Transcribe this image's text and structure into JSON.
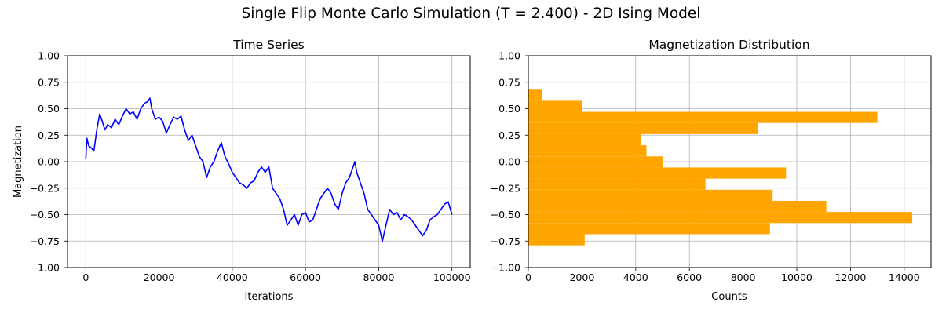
{
  "suptitle": "Single Flip Monte Carlo Simulation (T = 2.400) - 2D Ising Model",
  "colors": {
    "line": "#0000ff",
    "bars": "#ffa500",
    "grid": "#b0b0b0"
  },
  "chart_data": [
    {
      "type": "line",
      "title": "Time Series",
      "xlabel": "Iterations",
      "ylabel": "Magnetization",
      "xlim": [
        -5000,
        105000
      ],
      "ylim": [
        -1.0,
        1.0
      ],
      "xticks": [
        0,
        20000,
        40000,
        60000,
        80000,
        100000
      ],
      "xtick_labels": [
        "0",
        "20000",
        "40000",
        "60000",
        "80000",
        "100000"
      ],
      "yticks": [
        -1.0,
        -0.75,
        -0.5,
        -0.25,
        0.0,
        0.25,
        0.5,
        0.75,
        1.0
      ],
      "ytick_labels": [
        "−1.00",
        "−0.75",
        "−0.50",
        "−0.25",
        "0.00",
        "0.25",
        "0.50",
        "0.75",
        "1.00"
      ],
      "grid": true,
      "series": [
        {
          "color": "#0000ff",
          "x": [
            0,
            300,
            800,
            1500,
            2200,
            3000,
            3800,
            4500,
            5200,
            6000,
            7000,
            8000,
            9000,
            10000,
            11000,
            12000,
            13000,
            14000,
            15000,
            16000,
            17000,
            17500,
            18000,
            19000,
            20000,
            21000,
            22000,
            23000,
            24000,
            25000,
            26000,
            27000,
            28000,
            29000,
            30000,
            31000,
            32000,
            33000,
            34000,
            35000,
            36000,
            37000,
            38000,
            39000,
            40000,
            41000,
            42000,
            43000,
            44000,
            45000,
            46000,
            47000,
            48000,
            49000,
            50000,
            51000,
            52000,
            53000,
            54000,
            55000,
            56000,
            57000,
            58000,
            59000,
            60000,
            61000,
            62000,
            63000,
            64000,
            65000,
            66000,
            67000,
            68000,
            69000,
            70000,
            71000,
            72000,
            73000,
            73500,
            74000,
            75000,
            76000,
            77000,
            78000,
            79000,
            80000,
            81000,
            82000,
            83000,
            84000,
            85000,
            86000,
            87000,
            88000,
            89000,
            90000,
            91000,
            92000,
            93000,
            94000,
            95000,
            96000,
            97000,
            98000,
            99000,
            100000
          ],
          "y": [
            0.03,
            0.22,
            0.15,
            0.13,
            0.1,
            0.3,
            0.45,
            0.38,
            0.3,
            0.35,
            0.32,
            0.4,
            0.35,
            0.43,
            0.5,
            0.45,
            0.47,
            0.4,
            0.5,
            0.55,
            0.57,
            0.6,
            0.5,
            0.4,
            0.42,
            0.38,
            0.27,
            0.35,
            0.42,
            0.4,
            0.43,
            0.3,
            0.2,
            0.25,
            0.15,
            0.05,
            0.0,
            -0.15,
            -0.05,
            0.0,
            0.1,
            0.18,
            0.05,
            -0.02,
            -0.1,
            -0.15,
            -0.2,
            -0.22,
            -0.25,
            -0.2,
            -0.18,
            -0.1,
            -0.05,
            -0.1,
            -0.05,
            -0.25,
            -0.3,
            -0.35,
            -0.45,
            -0.6,
            -0.55,
            -0.5,
            -0.6,
            -0.5,
            -0.48,
            -0.57,
            -0.55,
            -0.45,
            -0.35,
            -0.3,
            -0.25,
            -0.3,
            -0.4,
            -0.45,
            -0.3,
            -0.2,
            -0.15,
            -0.05,
            0.0,
            -0.1,
            -0.2,
            -0.3,
            -0.45,
            -0.5,
            -0.55,
            -0.6,
            -0.75,
            -0.6,
            -0.45,
            -0.5,
            -0.48,
            -0.55,
            -0.5,
            -0.52,
            -0.55,
            -0.6,
            -0.65,
            -0.7,
            -0.65,
            -0.55,
            -0.52,
            -0.5,
            -0.45,
            -0.4,
            -0.38,
            -0.5
          ]
        }
      ]
    },
    {
      "type": "bar",
      "orientation": "horizontal",
      "title": "Magnetization Distribution",
      "xlabel": "Counts",
      "ylabel": "",
      "xlim": [
        0,
        15000
      ],
      "ylim": [
        -1.0,
        1.0
      ],
      "xticks": [
        0,
        2000,
        4000,
        6000,
        8000,
        10000,
        12000,
        14000
      ],
      "xtick_labels": [
        "0",
        "2000",
        "4000",
        "6000",
        "8000",
        "10000",
        "12000",
        "14000"
      ],
      "yticks": [
        -1.0,
        -0.75,
        -0.5,
        -0.25,
        0.0,
        0.25,
        0.5,
        0.75,
        1.0
      ],
      "ytick_labels": [
        "−1.00",
        "−0.75",
        "−0.50",
        "−0.25",
        "0.00",
        "0.25",
        "0.50",
        "0.75",
        "1.00"
      ],
      "grid": true,
      "bin_edges": [
        -0.79,
        -0.685,
        -0.58,
        -0.475,
        -0.37,
        -0.265,
        -0.16,
        -0.055,
        0.05,
        0.155,
        0.26,
        0.365,
        0.47,
        0.575,
        0.68
      ],
      "counts": [
        2100,
        9000,
        14300,
        11100,
        9100,
        6600,
        9600,
        5000,
        4400,
        4200,
        8550,
        13000,
        2000,
        500
      ]
    }
  ]
}
